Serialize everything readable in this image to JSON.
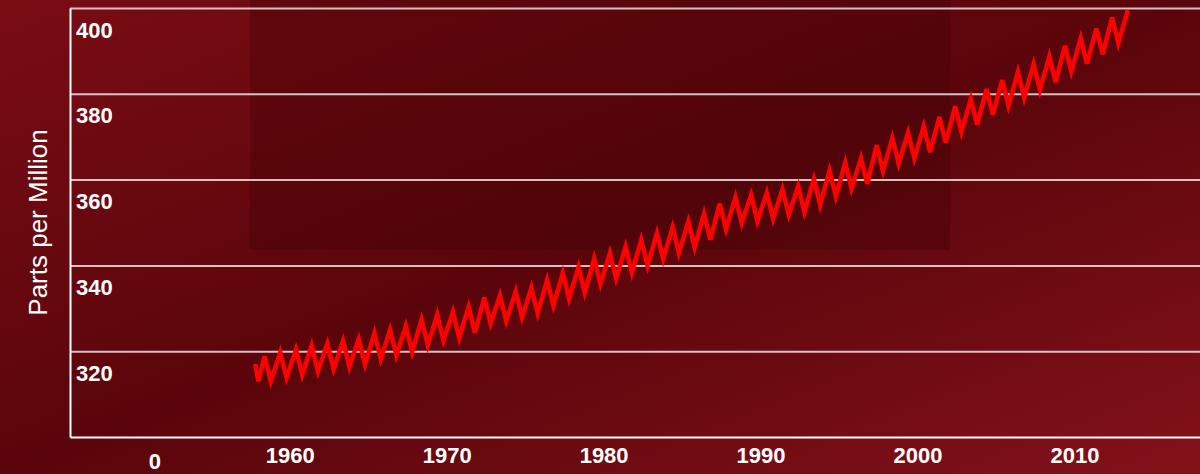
{
  "chart_data": {
    "type": "line",
    "y_label": "Parts per Million",
    "color": "#ff0000",
    "grid": true,
    "xlim": [
      1946,
      2018
    ],
    "xticks": [
      1960,
      1970,
      1980,
      1990,
      2000,
      2010
    ],
    "ylim": [
      300,
      400
    ],
    "yticks": [
      320,
      340,
      360,
      380,
      400
    ],
    "annotations": [
      {
        "text": "0",
        "x": 1951.4,
        "y": 294.2
      }
    ],
    "x": [
      1957.8,
      1958.0,
      1958.4,
      1958.8,
      1959.4,
      1959.8,
      1960.4,
      1960.8,
      1961.4,
      1961.8,
      1962.4,
      1962.8,
      1963.4,
      1963.8,
      1964.4,
      1964.8,
      1965.4,
      1965.8,
      1966.4,
      1966.8,
      1967.4,
      1967.8,
      1968.4,
      1968.8,
      1969.4,
      1969.8,
      1970.4,
      1970.8,
      1971.4,
      1971.8,
      1972.4,
      1972.8,
      1973.4,
      1973.8,
      1974.4,
      1974.8,
      1975.4,
      1975.8,
      1976.4,
      1976.8,
      1977.4,
      1977.8,
      1978.4,
      1978.8,
      1979.4,
      1979.8,
      1980.4,
      1980.8,
      1981.4,
      1981.8,
      1982.4,
      1982.8,
      1983.4,
      1983.8,
      1984.4,
      1984.8,
      1985.4,
      1985.8,
      1986.4,
      1986.8,
      1987.4,
      1987.8,
      1988.4,
      1988.8,
      1989.4,
      1989.8,
      1990.4,
      1990.8,
      1991.4,
      1991.8,
      1992.4,
      1992.8,
      1993.4,
      1993.8,
      1994.4,
      1994.8,
      1995.4,
      1995.8,
      1996.4,
      1996.8,
      1997.4,
      1997.8,
      1998.4,
      1998.8,
      1999.4,
      1999.8,
      2000.4,
      2000.8,
      2001.4,
      2001.8,
      2002.4,
      2002.8,
      2003.4,
      2003.8,
      2004.4,
      2004.8,
      2005.4,
      2005.8,
      2006.4,
      2006.8,
      2007.4,
      2007.8,
      2008.4,
      2008.8,
      2009.4,
      2009.8,
      2010.4,
      2010.8,
      2011.4,
      2011.8,
      2012.4,
      2012.8,
      2013.4
    ],
    "values": [
      317.0,
      313.0,
      318.8,
      313.0,
      319.7,
      313.8,
      320.4,
      314.5,
      321.3,
      315.3,
      321.8,
      315.8,
      322.4,
      316.4,
      322.8,
      316.9,
      324.2,
      318.2,
      325.0,
      319.0,
      325.8,
      319.8,
      327.4,
      321.4,
      328.5,
      322.5,
      329.1,
      323.1,
      330.3,
      324.3,
      332.5,
      326.5,
      333.0,
      327.0,
      333.9,
      327.9,
      334.8,
      328.8,
      336.6,
      330.6,
      338.2,
      332.2,
      339.6,
      333.6,
      341.6,
      335.6,
      342.9,
      336.9,
      344.3,
      338.3,
      345.9,
      339.9,
      347.5,
      341.5,
      348.9,
      342.9,
      350.2,
      344.2,
      352.0,
      346.0,
      354.4,
      348.4,
      355.9,
      349.9,
      356.4,
      350.3,
      356.9,
      350.9,
      357.8,
      351.8,
      358.4,
      352.4,
      360.1,
      354.1,
      362.1,
      356.1,
      363.9,
      357.9,
      365.0,
      359.0,
      368.0,
      362.0,
      369.7,
      363.7,
      370.9,
      364.9,
      372.4,
      366.4,
      374.6,
      368.6,
      377.1,
      371.1,
      378.8,
      372.8,
      381.1,
      375.1,
      383.2,
      377.2,
      385.1,
      379.1,
      386.9,
      380.9,
      388.7,
      382.7,
      391.2,
      385.2,
      393.0,
      387.0,
      395.2,
      389.2,
      397.8,
      391.8,
      399.5
    ]
  }
}
